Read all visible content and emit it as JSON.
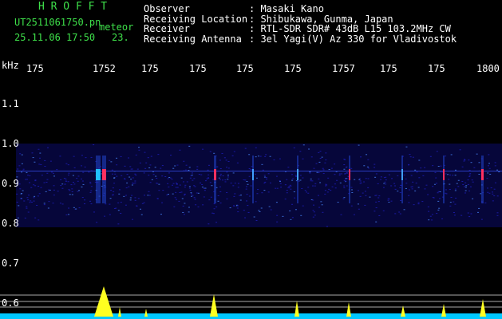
{
  "app": {
    "title": "H R O F F T",
    "file": "UT2511061750.pn",
    "tag": "meteor",
    "datetime": "25.11.06 17:50",
    "count": "23."
  },
  "info": {
    "rows": [
      {
        "label": "Observer",
        "value": ": Masaki Kano"
      },
      {
        "label": "Receiving Location",
        "value": ": Shibukawa, Gunma, Japan"
      },
      {
        "label": "Receiver",
        "value": ": RTL-SDR SDR# 43dB L15 103.2MHz CW"
      },
      {
        "label": "Receiving Antenna",
        "value": ": 3el Yagi(V) Az 330 for Vladivostok"
      }
    ]
  },
  "axis": {
    "unit": "kHz",
    "freq_labels": [
      "1.1",
      "1.0",
      "0.9",
      "0.8",
      "0.7",
      "0.6"
    ],
    "time_labels": [
      "175",
      "1752",
      "175",
      "175",
      "175",
      "175",
      "1757",
      "175",
      "175",
      "1800"
    ]
  }
}
